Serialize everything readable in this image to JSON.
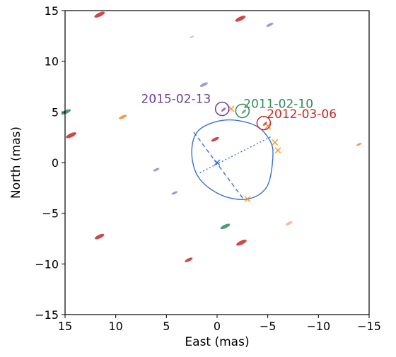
{
  "chart_data": {
    "type": "scatter",
    "title": "",
    "xlabel": "East (mas)",
    "ylabel": "North (mas)",
    "xlim": [
      15,
      -15
    ],
    "ylim": [
      -15,
      15
    ],
    "xticks": [
      15,
      10,
      5,
      0,
      -5,
      -10,
      -15
    ],
    "yticks": [
      15,
      10,
      5,
      0,
      -5,
      -10,
      -15
    ],
    "tick_labels_x": [
      "15",
      "10",
      "5",
      "0",
      "−5",
      "−10",
      "−15"
    ],
    "tick_labels_y": [
      "15",
      "10",
      "5",
      "0",
      "−5",
      "−10",
      "−15"
    ],
    "grid": false,
    "colors": {
      "ellipse": "#3a6fd8",
      "cross": "#f39a1e",
      "red": "#c62828",
      "green": "#2e8b57",
      "purple": "#6a3d9a",
      "orange": "#f08a3c",
      "lavender": "#8a8ad0"
    },
    "ellipse": {
      "center": [
        0.0,
        0.0
      ],
      "major_axis_ends": [
        [
          2.3,
          3.0
        ],
        [
          -2.6,
          -3.6
        ]
      ],
      "minor_axis_ends": [
        [
          1.7,
          -1.0
        ],
        [
          -5.4,
          2.6
        ]
      ],
      "outline": [
        [
          -5.5,
          0.5
        ],
        [
          -4.9,
          -2.4
        ],
        [
          -3.0,
          -3.6
        ],
        [
          -0.4,
          -3.2
        ],
        [
          1.8,
          -1.5
        ],
        [
          2.5,
          1.0
        ],
        [
          1.8,
          3.2
        ],
        [
          -0.8,
          4.2
        ],
        [
          -3.7,
          3.7
        ],
        [
          -5.2,
          2.2
        ]
      ]
    },
    "crosses": [
      [
        -1.4,
        5.3
      ],
      [
        -5.0,
        3.6
      ],
      [
        -5.7,
        2.0
      ],
      [
        -6.0,
        1.2
      ],
      [
        -3.0,
        -3.6
      ]
    ],
    "annotations": [
      {
        "label": "2015-02-13",
        "circle_center": [
          -0.5,
          5.3
        ],
        "text_pos": [
          7.5,
          5.9
        ],
        "color": "#6a3d9a"
      },
      {
        "label": "2011-02-10",
        "circle_center": [
          -2.5,
          5.1
        ],
        "text_pos": [
          -2.6,
          5.4
        ],
        "color": "#2e8b57"
      },
      {
        "label": "2012-03-06",
        "circle_center": [
          -4.6,
          3.9
        ],
        "text_pos": [
          -4.9,
          4.4
        ],
        "color": "#c62828"
      }
    ],
    "blobs": [
      {
        "x": 11.6,
        "y": 14.6,
        "color": "#c62828",
        "size": 1.0
      },
      {
        "x": -2.3,
        "y": 14.2,
        "color": "#c62828",
        "size": 1.0
      },
      {
        "x": -5.2,
        "y": 13.6,
        "color": "#8a8ad0",
        "size": 0.6
      },
      {
        "x": 2.5,
        "y": 12.4,
        "color": "#c9b8e0",
        "size": 0.3
      },
      {
        "x": 1.3,
        "y": 7.7,
        "color": "#8a8ad0",
        "size": 0.7
      },
      {
        "x": 14.9,
        "y": 5.0,
        "color": "#2e8b57",
        "size": 0.9
      },
      {
        "x": 9.3,
        "y": 4.5,
        "color": "#f08a3c",
        "size": 0.7
      },
      {
        "x": 14.4,
        "y": 2.7,
        "color": "#c62828",
        "size": 1.0
      },
      {
        "x": 0.2,
        "y": 2.3,
        "color": "#c62828",
        "size": 0.7
      },
      {
        "x": -14.0,
        "y": 1.8,
        "color": "#f08a3c",
        "size": 0.4
      },
      {
        "x": 6.0,
        "y": -0.7,
        "color": "#8a8ad0",
        "size": 0.5
      },
      {
        "x": 4.2,
        "y": -3.0,
        "color": "#8a8ad0",
        "size": 0.5
      },
      {
        "x": -7.1,
        "y": -6.0,
        "color": "#f3b08a",
        "size": 0.6
      },
      {
        "x": -0.8,
        "y": -6.3,
        "color": "#2e8b57",
        "size": 0.9
      },
      {
        "x": 11.6,
        "y": -7.3,
        "color": "#c62828",
        "size": 0.9
      },
      {
        "x": -2.4,
        "y": -7.9,
        "color": "#c62828",
        "size": 1.0
      },
      {
        "x": 2.8,
        "y": -9.6,
        "color": "#c62828",
        "size": 0.7
      }
    ]
  }
}
